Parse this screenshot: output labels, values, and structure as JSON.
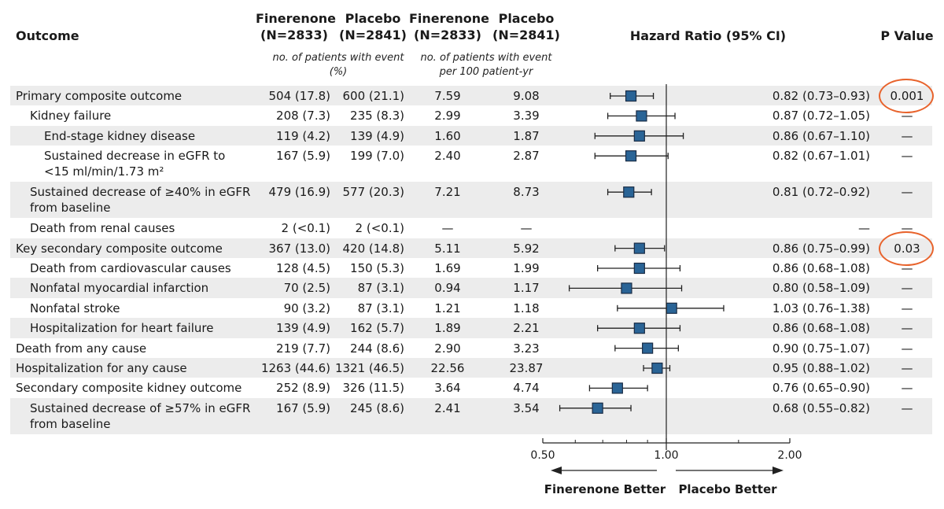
{
  "header": {
    "outcome": "Outcome",
    "col1": "Finerenone (N=2833)",
    "col2": "Placebo (N=2841)",
    "col3": "Finerenone (N=2833)",
    "col4": "Placebo (N=2841)",
    "hr": "Hazard Ratio (95% CI)",
    "pvalue": "P Value",
    "sub_counts": "no. of patients with event (%)",
    "sub_rates": "no. of patients with event per 100 patient-yr"
  },
  "chart_data": {
    "type": "forest",
    "xlim": [
      0.5,
      2.0
    ],
    "x_scale": "log",
    "reference_line": 1.0,
    "ticks": [
      "0.50",
      "1.00",
      "2.00"
    ],
    "arrow_left": "Finerenone Better",
    "arrow_right": "Placebo Better",
    "rows": [
      {
        "label": "Primary composite outcome",
        "indent": 0,
        "lines": 1,
        "fin": "504 (17.8)",
        "pla": "600 (21.1)",
        "fin_rate": "7.59",
        "pla_rate": "9.08",
        "hr": 0.82,
        "lo": 0.73,
        "hi": 0.93,
        "hr_text": "0.82 (0.73–0.93)",
        "p": "0.001",
        "circled": true
      },
      {
        "label": "Kidney failure",
        "indent": 1,
        "lines": 1,
        "fin": "208 (7.3)",
        "pla": "235 (8.3)",
        "fin_rate": "2.99",
        "pla_rate": "3.39",
        "hr": 0.87,
        "lo": 0.72,
        "hi": 1.05,
        "hr_text": "0.87 (0.72–1.05)",
        "p": "—"
      },
      {
        "label": "End-stage kidney disease",
        "indent": 2,
        "lines": 1,
        "fin": "119 (4.2)",
        "pla": "139 (4.9)",
        "fin_rate": "1.60",
        "pla_rate": "1.87",
        "hr": 0.86,
        "lo": 0.67,
        "hi": 1.1,
        "hr_text": "0.86 (0.67–1.10)",
        "p": "—"
      },
      {
        "label": "Sustained decrease in eGFR to <15 ml/min/1.73 m²",
        "indent": 2,
        "lines": 2,
        "fin": "167 (5.9)",
        "pla": "199 (7.0)",
        "fin_rate": "2.40",
        "pla_rate": "2.87",
        "hr": 0.82,
        "lo": 0.67,
        "hi": 1.01,
        "hr_text": "0.82 (0.67–1.01)",
        "p": "—"
      },
      {
        "label": "Sustained decrease of ≥40% in eGFR from baseline",
        "indent": 1,
        "lines": 2,
        "fin": "479 (16.9)",
        "pla": "577 (20.3)",
        "fin_rate": "7.21",
        "pla_rate": "8.73",
        "hr": 0.81,
        "lo": 0.72,
        "hi": 0.92,
        "hr_text": "0.81 (0.72–0.92)",
        "p": "—"
      },
      {
        "label": "Death from renal causes",
        "indent": 1,
        "lines": 1,
        "fin": "2 (<0.1)",
        "pla": "2 (<0.1)",
        "fin_rate": "—",
        "pla_rate": "—",
        "hr": null,
        "lo": null,
        "hi": null,
        "hr_text": "—",
        "p": "—"
      },
      {
        "label": "Key secondary composite outcome",
        "indent": 0,
        "lines": 1,
        "fin": "367 (13.0)",
        "pla": "420 (14.8)",
        "fin_rate": "5.11",
        "pla_rate": "5.92",
        "hr": 0.86,
        "lo": 0.75,
        "hi": 0.99,
        "hr_text": "0.86 (0.75–0.99)",
        "p": "0.03",
        "circled": true
      },
      {
        "label": "Death from cardiovascular causes",
        "indent": 1,
        "lines": 1,
        "fin": "128 (4.5)",
        "pla": "150 (5.3)",
        "fin_rate": "1.69",
        "pla_rate": "1.99",
        "hr": 0.86,
        "lo": 0.68,
        "hi": 1.08,
        "hr_text": "0.86 (0.68–1.08)",
        "p": "—"
      },
      {
        "label": "Nonfatal myocardial infarction",
        "indent": 1,
        "lines": 1,
        "fin": "70 (2.5)",
        "pla": "87 (3.1)",
        "fin_rate": "0.94",
        "pla_rate": "1.17",
        "hr": 0.8,
        "lo": 0.58,
        "hi": 1.09,
        "hr_text": "0.80 (0.58–1.09)",
        "p": "—"
      },
      {
        "label": "Nonfatal stroke",
        "indent": 1,
        "lines": 1,
        "fin": "90 (3.2)",
        "pla": "87 (3.1)",
        "fin_rate": "1.21",
        "pla_rate": "1.18",
        "hr": 1.03,
        "lo": 0.76,
        "hi": 1.38,
        "hr_text": "1.03 (0.76–1.38)",
        "p": "—"
      },
      {
        "label": "Hospitalization for heart failure",
        "indent": 1,
        "lines": 1,
        "fin": "139 (4.9)",
        "pla": "162 (5.7)",
        "fin_rate": "1.89",
        "pla_rate": "2.21",
        "hr": 0.86,
        "lo": 0.68,
        "hi": 1.08,
        "hr_text": "0.86 (0.68–1.08)",
        "p": "—"
      },
      {
        "label": "Death from any cause",
        "indent": 0,
        "lines": 1,
        "fin": "219 (7.7)",
        "pla": "244 (8.6)",
        "fin_rate": "2.90",
        "pla_rate": "3.23",
        "hr": 0.9,
        "lo": 0.75,
        "hi": 1.07,
        "hr_text": "0.90 (0.75–1.07)",
        "p": "—"
      },
      {
        "label": "Hospitalization for any cause",
        "indent": 0,
        "lines": 1,
        "fin": "1263 (44.6)",
        "pla": "1321 (46.5)",
        "fin_rate": "22.56",
        "pla_rate": "23.87",
        "hr": 0.95,
        "lo": 0.88,
        "hi": 1.02,
        "hr_text": "0.95 (0.88–1.02)",
        "p": "—"
      },
      {
        "label": "Secondary composite kidney outcome",
        "indent": 0,
        "lines": 1,
        "fin": "252 (8.9)",
        "pla": "326 (11.5)",
        "fin_rate": "3.64",
        "pla_rate": "4.74",
        "hr": 0.76,
        "lo": 0.65,
        "hi": 0.9,
        "hr_text": "0.76 (0.65–0.90)",
        "p": "—"
      },
      {
        "label": "Sustained decrease of ≥57% in eGFR from baseline",
        "indent": 1,
        "lines": 2,
        "fin": "167 (5.9)",
        "pla": "245 (8.6)",
        "fin_rate": "2.41",
        "pla_rate": "3.54",
        "hr": 0.68,
        "lo": 0.55,
        "hi": 0.82,
        "hr_text": "0.68 (0.55–0.82)",
        "p": "—"
      }
    ],
    "colors": {
      "marker": "#2a6496",
      "marker_edge": "#1a2c45",
      "band": "#ececec",
      "circle": "#e8632c"
    }
  }
}
